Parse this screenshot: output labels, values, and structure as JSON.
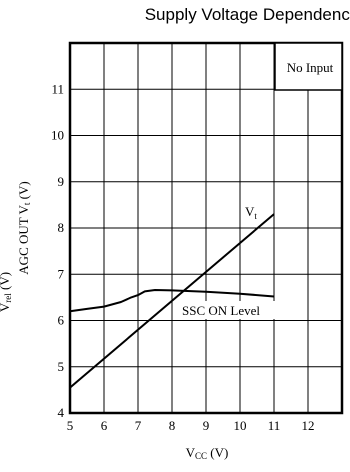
{
  "chart_data": {
    "type": "line",
    "title": "Supply Voltage Dependence",
    "xlabel": {
      "main": "V",
      "sub": "CC",
      "unit": " (V)"
    },
    "ylabel": {
      "main": "AGC OUT  V",
      "sub": "t",
      "unit": " (V)"
    },
    "ylabel_clipped": {
      "main": "V",
      "sub": "rel",
      "unit": " (V)"
    },
    "xlim": [
      5,
      13
    ],
    "ylim": [
      4,
      12
    ],
    "xticks": [
      5,
      6,
      7,
      8,
      9,
      10,
      11,
      12
    ],
    "yticks": [
      4,
      5,
      6,
      7,
      8,
      9,
      10,
      11
    ],
    "grid": true,
    "legend_box": "No Input",
    "series": [
      {
        "name": {
          "main": "V",
          "sub": "t"
        },
        "points": [
          [
            5.0,
            4.55
          ],
          [
            11.0,
            8.3
          ]
        ]
      },
      {
        "name": "SSC ON Level",
        "points": [
          [
            5.0,
            6.2
          ],
          [
            5.5,
            6.25
          ],
          [
            6.0,
            6.3
          ],
          [
            6.5,
            6.4
          ],
          [
            6.8,
            6.5
          ],
          [
            7.0,
            6.55
          ],
          [
            7.2,
            6.63
          ],
          [
            7.5,
            6.66
          ],
          [
            8.0,
            6.65
          ],
          [
            9.0,
            6.62
          ],
          [
            10.0,
            6.58
          ],
          [
            11.0,
            6.52
          ]
        ]
      }
    ]
  }
}
